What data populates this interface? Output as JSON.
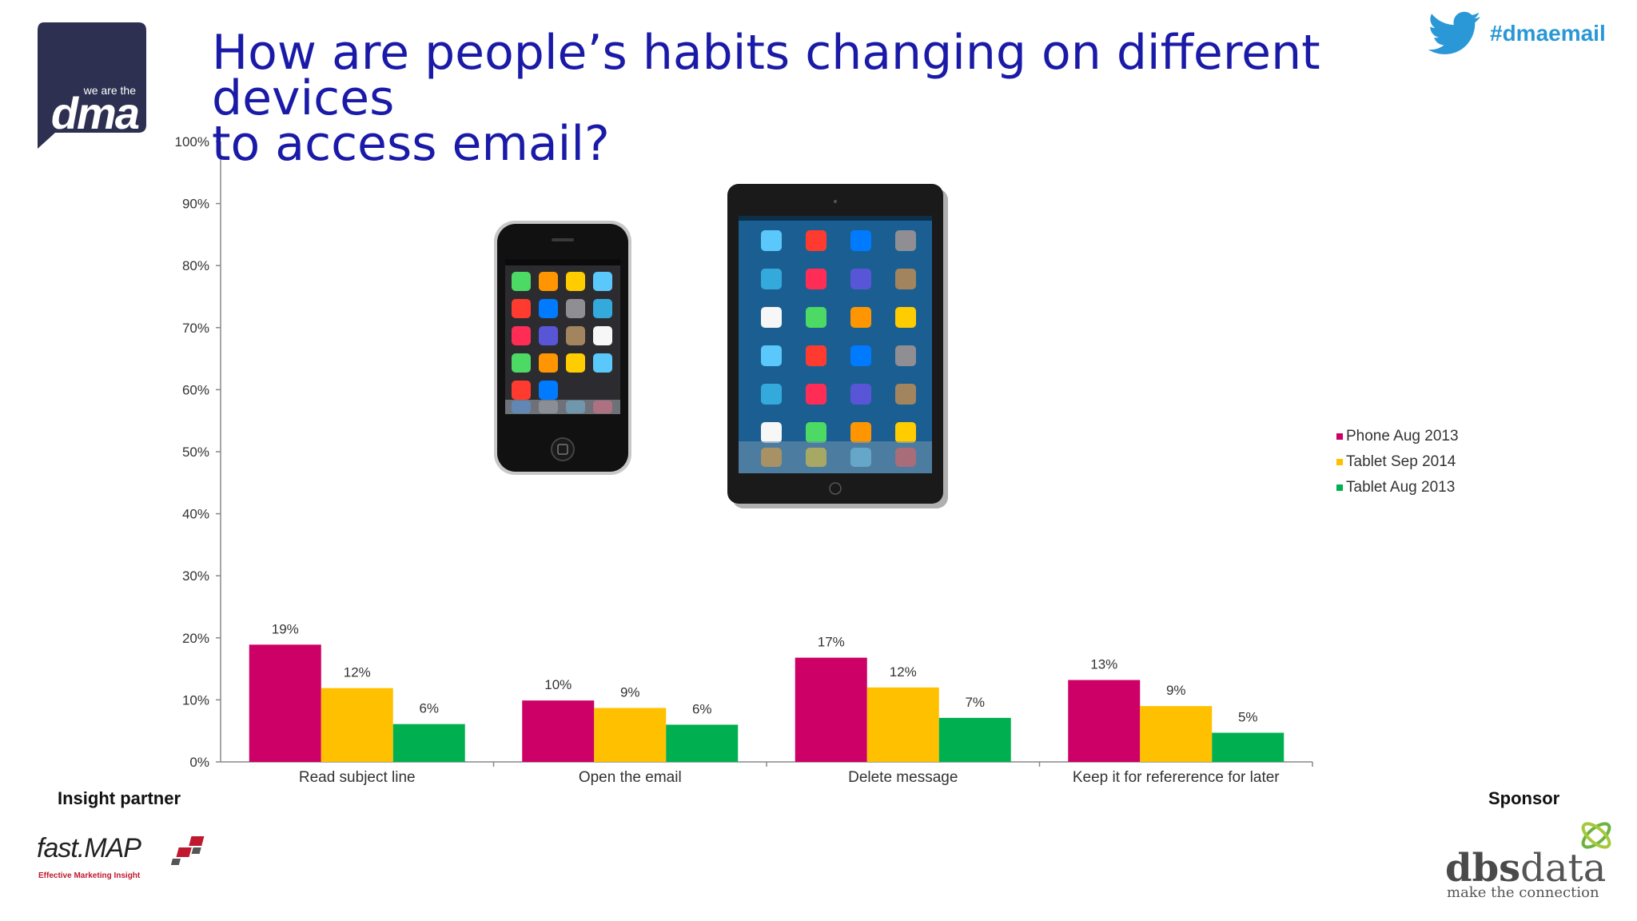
{
  "header": {
    "title_line1": "How are people’s habits changing on different devices",
    "title_line2": "to access email?",
    "hashtag": "#dmaemail"
  },
  "logos": {
    "dma_small": "we are the",
    "dma_big": "dma",
    "partner_name": "fast.MAP",
    "partner_tagline": "Effective Marketing Insight",
    "sponsor_name_bold": "dbs",
    "sponsor_name_rest": "data",
    "sponsor_tagline": "make the connection"
  },
  "footer": {
    "insight_label": "Insight partner",
    "sponsor_label": "Sponsor"
  },
  "colors": {
    "title": "#1a1aa8",
    "phone_aug_2013": "#cc0066",
    "tablet_sep_2014": "#ffc000",
    "tablet_aug_2013": "#00b050",
    "twitter": "#2a97d6"
  },
  "icons": [
    "dma-logo",
    "twitter-bird-icon",
    "smartphone-image",
    "tablet-image",
    "fastmap-logo",
    "dbsdata-logo"
  ],
  "chart_data": {
    "type": "bar",
    "categories": [
      "Read subject line",
      "Open the email",
      "Delete message",
      "Keep it for refererence for later"
    ],
    "series": [
      {
        "name": "Phone Aug 2013",
        "values": [
          19,
          10,
          17,
          13
        ],
        "labels": [
          "19%",
          "10%",
          "17%",
          "13%"
        ],
        "color": "#cc0066"
      },
      {
        "name": "Tablet Sep 2014",
        "values": [
          12,
          9,
          12,
          9
        ],
        "labels": [
          "12%",
          "9%",
          "12%",
          "9%"
        ],
        "color": "#ffc000"
      },
      {
        "name": "Tablet Aug 2013",
        "values": [
          6,
          6,
          7,
          5
        ],
        "labels": [
          "6%",
          "6%",
          "7%",
          "5%"
        ],
        "color": "#00b050"
      }
    ],
    "plotted_values": [
      [
        18.9,
        9.9,
        16.8,
        13.2
      ],
      [
        11.9,
        8.7,
        12.0,
        9.0
      ],
      [
        6.1,
        6.0,
        7.1,
        4.7
      ]
    ],
    "ylim": [
      0,
      100
    ],
    "yticks": [
      "0%",
      "10%",
      "20%",
      "30%",
      "40%",
      "50%",
      "60%",
      "70%",
      "80%",
      "90%",
      "100%"
    ],
    "legend_position": "right",
    "grid": false
  }
}
